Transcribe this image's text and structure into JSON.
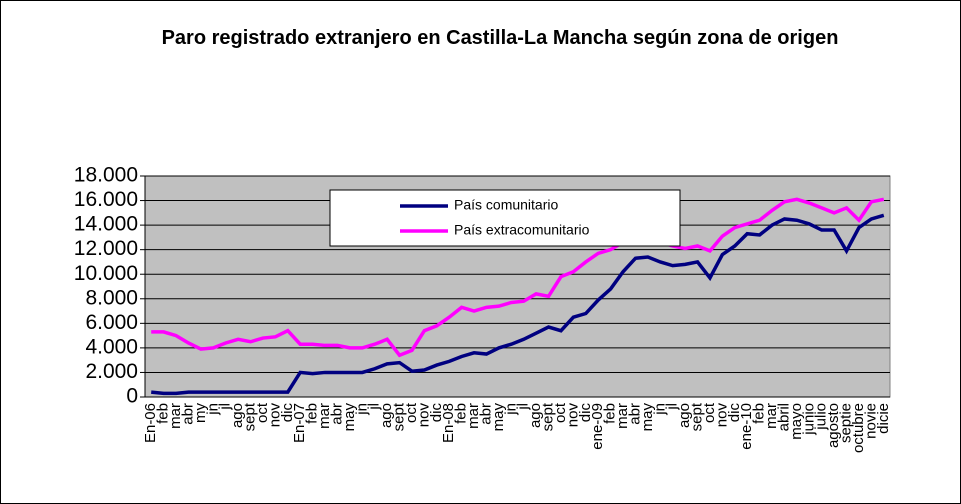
{
  "chart_data": {
    "type": "line",
    "title": "Paro registrado extranjero en Castilla-La Mancha según zona de origen",
    "categories": [
      "En-06",
      "feb",
      "mar",
      "abr",
      "my",
      "jn",
      "jl",
      "ago",
      "sept",
      "oct",
      "nov",
      "dic",
      "En-07",
      "feb",
      "mar",
      "abr",
      "may",
      "jn",
      "jl",
      "ago",
      "sept",
      "oct",
      "nov",
      "dic",
      "En-08",
      "feb",
      "mar",
      "abr",
      "may",
      "jn",
      "jl",
      "ago",
      "sept",
      "oct",
      "nov",
      "dic",
      "ene-09",
      "feb",
      "mar",
      "abr",
      "may",
      "jn",
      "jl",
      "ago",
      "sept",
      "oct",
      "nov",
      "dic",
      "ene-10",
      "feb",
      "mar",
      "abril",
      "mayo",
      "junio",
      "julio",
      "agosto",
      "septie",
      "octubre",
      "novie",
      "dicie"
    ],
    "series": [
      {
        "name": "País comunitario",
        "color": "#000080",
        "values": [
          400,
          300,
          300,
          400,
          400,
          400,
          400,
          400,
          400,
          400,
          400,
          400,
          2000,
          1900,
          2000,
          2000,
          2000,
          2000,
          2300,
          2700,
          2800,
          2100,
          2200,
          2600,
          2900,
          3300,
          3600,
          3500,
          4000,
          4300,
          4700,
          5200,
          5700,
          5400,
          6500,
          6800,
          7900,
          8800,
          10200,
          11300,
          11400,
          11000,
          10700,
          10800,
          11000,
          9700,
          11600,
          12300,
          13300,
          13200,
          14000,
          14500,
          14400,
          14100,
          13600,
          13600,
          11900,
          13800,
          14500,
          14800
        ]
      },
      {
        "name": "País extracomunitario",
        "color": "#ff00ff",
        "values": [
          5300,
          5300,
          5000,
          4400,
          3900,
          4000,
          4400,
          4700,
          4500,
          4800,
          4900,
          5400,
          4300,
          4300,
          4200,
          4200,
          4000,
          4000,
          4300,
          4700,
          3400,
          3800,
          5400,
          5800,
          6500,
          7300,
          7000,
          7300,
          7400,
          7700,
          7800,
          8400,
          8200,
          9800,
          10200,
          11000,
          11700,
          12000,
          12600,
          12900,
          13000,
          12600,
          12300,
          12100,
          12300,
          11900,
          13100,
          13800,
          14100,
          14400,
          15200,
          15900,
          16100,
          15800,
          15400,
          15000,
          15400,
          14400,
          15900,
          16100
        ]
      }
    ],
    "ylim": [
      0,
      18000
    ],
    "yticks": [
      0,
      {
        "value": 2000,
        "label": "2.000"
      },
      {
        "value": 4000,
        "label": "4.000"
      },
      {
        "value": 6000,
        "label": "6.000"
      },
      {
        "value": 8000,
        "label": "8.000"
      },
      {
        "value": 10000,
        "label": "10.000"
      },
      {
        "value": 12000,
        "label": "12.000"
      },
      {
        "value": 14000,
        "label": "14.000"
      },
      {
        "value": 16000,
        "label": "16.000"
      },
      {
        "value": 18000,
        "label": "18.000"
      }
    ],
    "grid": true,
    "plot_background": "#c0c0c0"
  }
}
